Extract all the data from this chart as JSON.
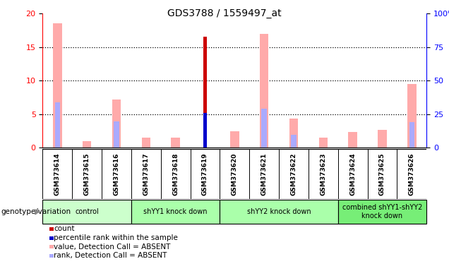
{
  "title": "GDS3788 / 1559497_at",
  "samples": [
    "GSM373614",
    "GSM373615",
    "GSM373616",
    "GSM373617",
    "GSM373618",
    "GSM373619",
    "GSM373620",
    "GSM373621",
    "GSM373622",
    "GSM373623",
    "GSM373624",
    "GSM373625",
    "GSM373626"
  ],
  "count_values": [
    0,
    0,
    0,
    0,
    0,
    16.5,
    0,
    0,
    0,
    0,
    0,
    0,
    0
  ],
  "percentile_values": [
    0,
    0,
    0,
    0,
    0,
    5.2,
    0,
    0,
    0,
    0,
    0,
    0,
    0
  ],
  "absent_value_values": [
    18.5,
    1.0,
    7.2,
    1.5,
    1.5,
    0,
    2.5,
    17.0,
    4.3,
    1.5,
    2.3,
    2.7,
    9.5
  ],
  "absent_rank_values": [
    6.8,
    0,
    3.9,
    0,
    0,
    0,
    0,
    5.8,
    1.9,
    0,
    0,
    0,
    3.8
  ],
  "groups": [
    {
      "label": "control",
      "start": 0,
      "end": 3,
      "color": "#ccffcc"
    },
    {
      "label": "shYY1 knock down",
      "start": 3,
      "end": 6,
      "color": "#aaffaa"
    },
    {
      "label": "shYY2 knock down",
      "start": 6,
      "end": 10,
      "color": "#aaffaa"
    },
    {
      "label": "combined shYY1-shYY2\nknock down",
      "start": 10,
      "end": 13,
      "color": "#77ee77"
    }
  ],
  "ylim_left": [
    0,
    20
  ],
  "ylim_right": [
    0,
    100
  ],
  "yticks_left": [
    0,
    5,
    10,
    15,
    20
  ],
  "yticks_right": [
    0,
    25,
    50,
    75,
    100
  ],
  "ytick_right_labels": [
    "0",
    "25",
    "50",
    "75",
    "100%"
  ],
  "count_color": "#cc0000",
  "percentile_color": "#0000cc",
  "absent_value_color": "#ffaaaa",
  "absent_rank_color": "#aaaaff",
  "legend_items": [
    {
      "label": "count",
      "color": "#cc0000"
    },
    {
      "label": "percentile rank within the sample",
      "color": "#0000cc"
    },
    {
      "label": "value, Detection Call = ABSENT",
      "color": "#ffaaaa"
    },
    {
      "label": "rank, Detection Call = ABSENT",
      "color": "#aaaaff"
    }
  ],
  "group_label_prefix": "genotype/variation",
  "background_color": "#ffffff",
  "tick_label_area_color": "#cccccc",
  "absent_value_bar_width": 0.3,
  "absent_rank_bar_width": 0.18,
  "count_bar_width": 0.14,
  "percentile_bar_width": 0.1
}
